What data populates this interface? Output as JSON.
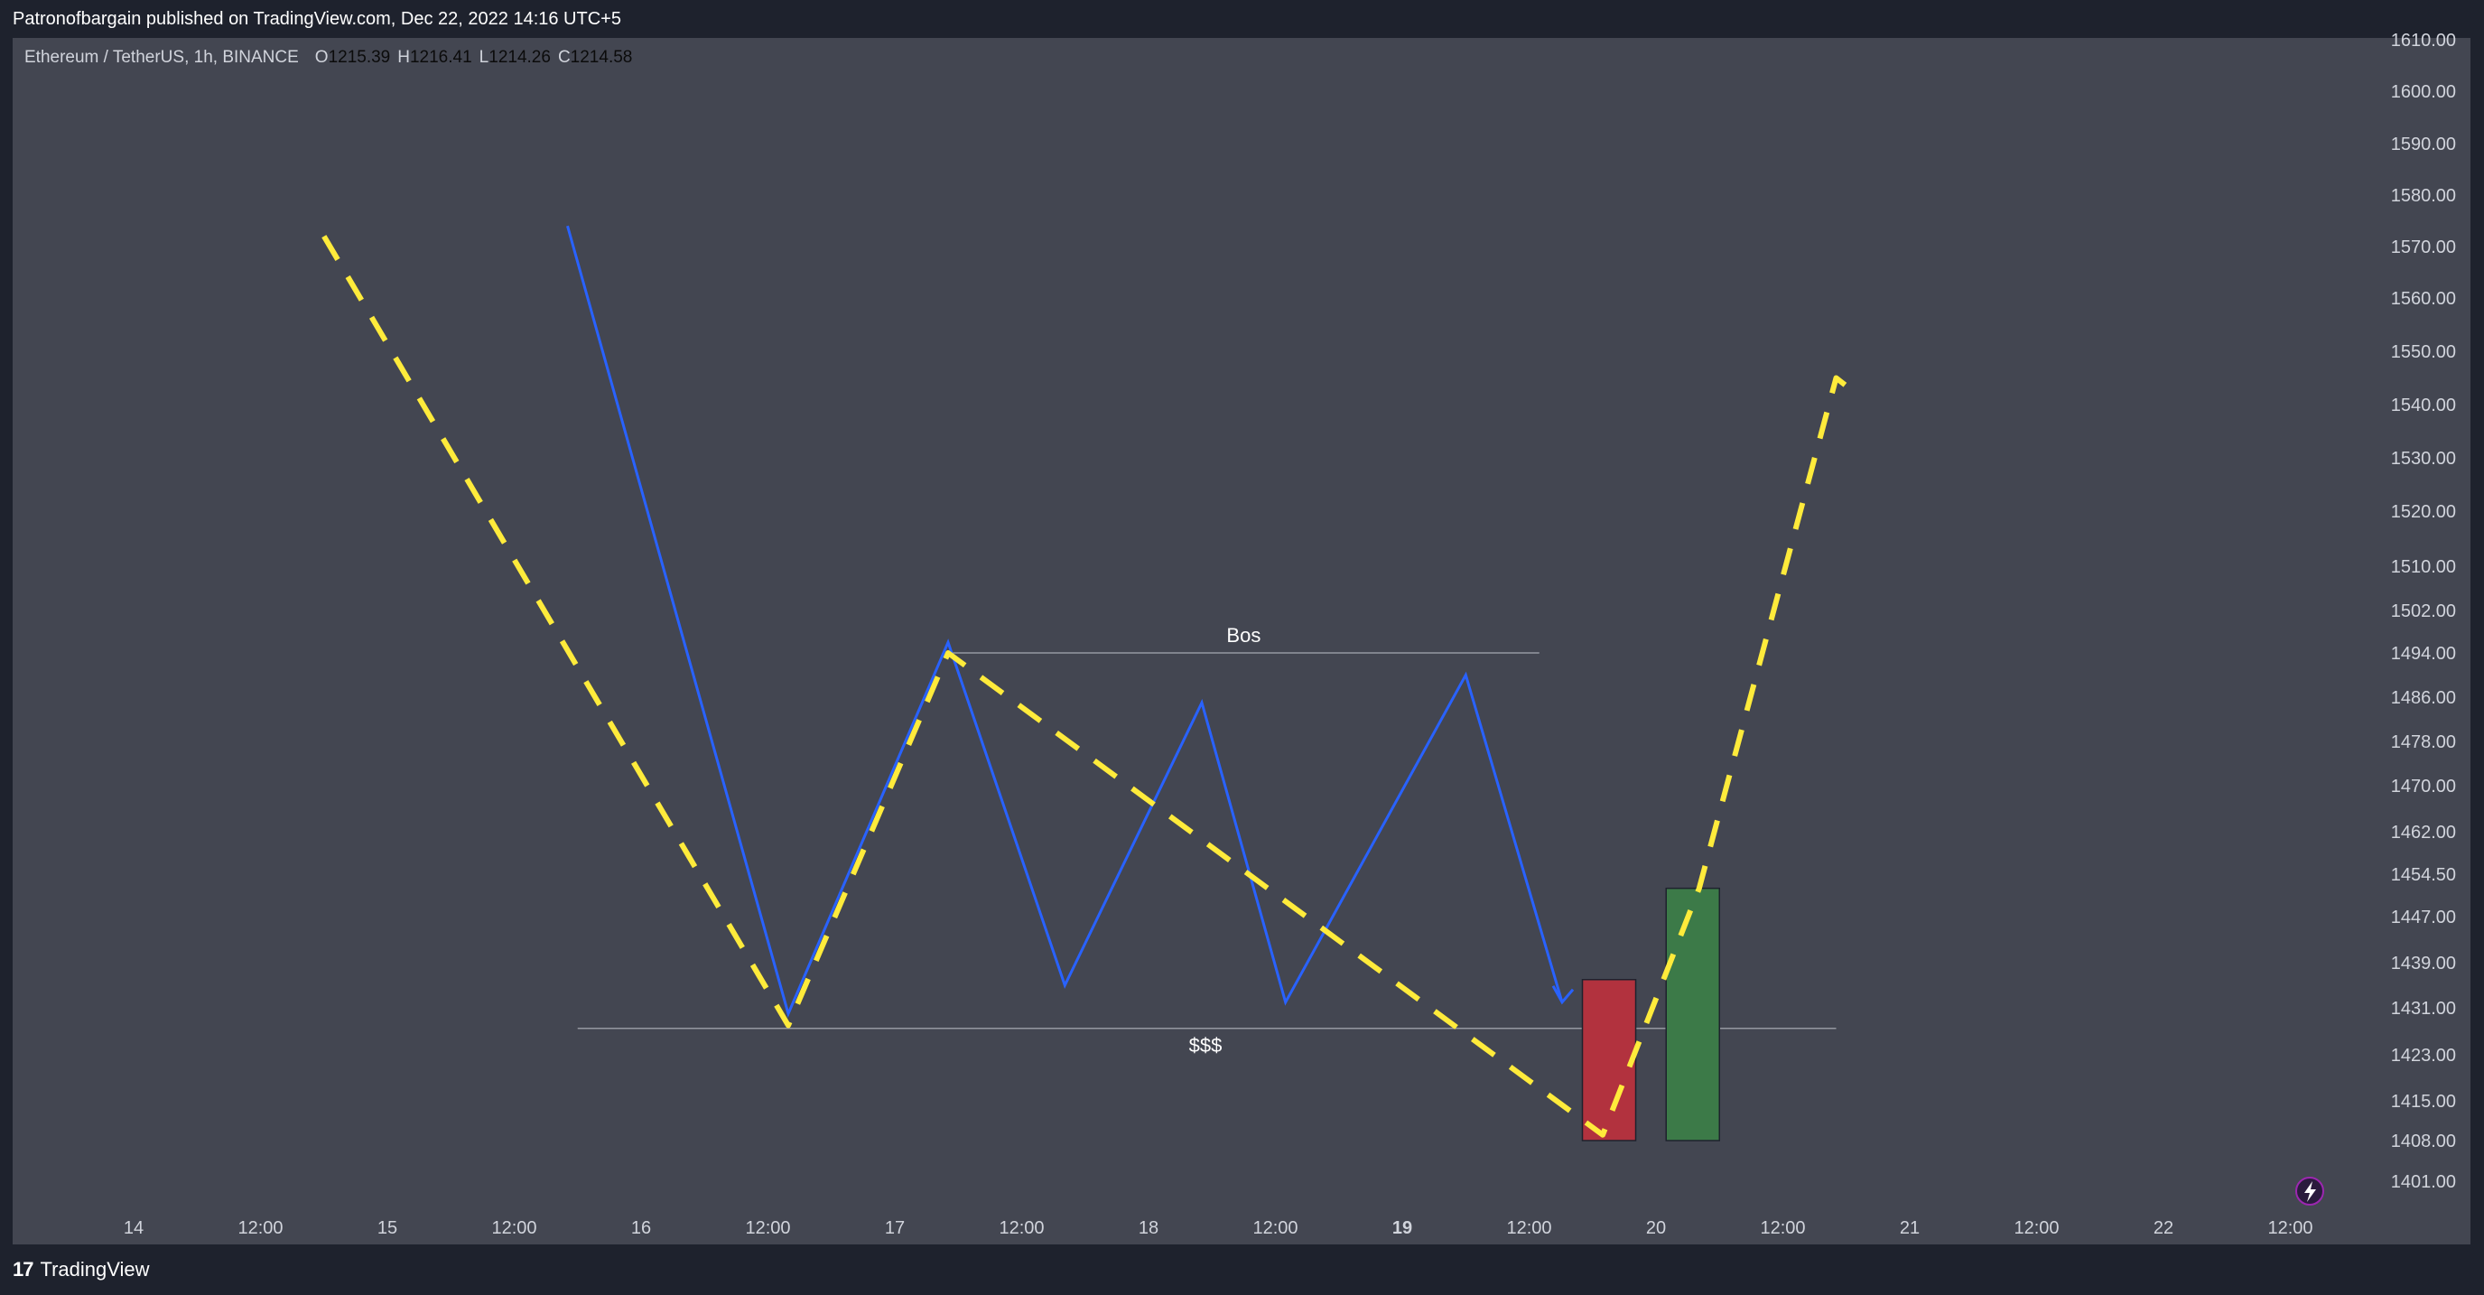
{
  "header": {
    "publish_note": "Patronofbargain published on TradingView.com, Dec 22, 2022 14:16 UTC+5"
  },
  "legend": {
    "symbol": "Ethereum / TetherUS, 1h, BINANCE",
    "open_key": "O",
    "open": "1215.39",
    "high_key": "H",
    "high": "1216.41",
    "low_key": "L",
    "low": "1214.26",
    "close_key": "C",
    "close": "1214.58"
  },
  "price_axis": {
    "labels": [
      {
        "text": "1610.00",
        "value": 1610
      },
      {
        "text": "1600.00",
        "value": 1600
      },
      {
        "text": "1590.00",
        "value": 1590
      },
      {
        "text": "1580.00",
        "value": 1580
      },
      {
        "text": "1570.00",
        "value": 1570
      },
      {
        "text": "1560.00",
        "value": 1560
      },
      {
        "text": "1550.00",
        "value": 1550
      },
      {
        "text": "1540.00",
        "value": 1540
      },
      {
        "text": "1530.00",
        "value": 1530
      },
      {
        "text": "1520.00",
        "value": 1520
      },
      {
        "text": "1510.00",
        "value": 1510
      },
      {
        "text": "1502.00",
        "value": 1502
      },
      {
        "text": "1494.00",
        "value": 1494
      },
      {
        "text": "1486.00",
        "value": 1486
      },
      {
        "text": "1478.00",
        "value": 1478
      },
      {
        "text": "1470.00",
        "value": 1470
      },
      {
        "text": "1462.00",
        "value": 1462
      },
      {
        "text": "1454.50",
        "value": 1454.5
      },
      {
        "text": "1447.00",
        "value": 1447
      },
      {
        "text": "1439.00",
        "value": 1439
      },
      {
        "text": "1431.00",
        "value": 1431
      },
      {
        "text": "1423.00",
        "value": 1423
      },
      {
        "text": "1415.00",
        "value": 1415
      },
      {
        "text": "1408.00",
        "value": 1408
      },
      {
        "text": "1401.00",
        "value": 1401
      }
    ]
  },
  "time_axis": {
    "labels": [
      {
        "text": "14",
        "bold": false
      },
      {
        "text": "12:00",
        "bold": false
      },
      {
        "text": "15",
        "bold": false
      },
      {
        "text": "12:00",
        "bold": false
      },
      {
        "text": "16",
        "bold": false
      },
      {
        "text": "12:00",
        "bold": false
      },
      {
        "text": "17",
        "bold": false
      },
      {
        "text": "12:00",
        "bold": false
      },
      {
        "text": "18",
        "bold": false
      },
      {
        "text": "12:00",
        "bold": false
      },
      {
        "text": "19",
        "bold": true
      },
      {
        "text": "12:00",
        "bold": false
      },
      {
        "text": "20",
        "bold": false
      },
      {
        "text": "12:00",
        "bold": false
      },
      {
        "text": "21",
        "bold": false
      },
      {
        "text": "12:00",
        "bold": false
      },
      {
        "text": "22",
        "bold": false
      },
      {
        "text": "12:00",
        "bold": false
      }
    ]
  },
  "annotations": {
    "bos_label": "Bos",
    "liquidity_label": "$$$",
    "colors": {
      "blue_path": "#2962ff",
      "yellow_projection": "#ffeb3b",
      "red_box": "#b2323e",
      "green_box": "#3c7a48",
      "level_line": "#9598a1"
    },
    "blue_path": [
      {
        "day": 15.71,
        "price": 1574
      },
      {
        "day": 16.58,
        "price": 1430
      },
      {
        "day": 17.21,
        "price": 1496
      },
      {
        "day": 17.67,
        "price": 1435
      },
      {
        "day": 18.21,
        "price": 1485
      },
      {
        "day": 18.54,
        "price": 1432
      },
      {
        "day": 19.25,
        "price": 1490
      },
      {
        "day": 19.63,
        "price": 1432
      }
    ],
    "yellow_path": [
      {
        "day": 14.75,
        "price": 1572
      },
      {
        "day": 16.58,
        "price": 1428
      },
      {
        "day": 17.21,
        "price": 1494
      },
      {
        "day": 19.79,
        "price": 1409
      },
      {
        "day": 20.17,
        "price": 1452
      },
      {
        "day": 20.71,
        "price": 1545
      },
      {
        "day": 20.79,
        "price": 1542
      }
    ],
    "bos_level": {
      "price": 1494,
      "day_start": 17.21,
      "day_end": 19.54
    },
    "liquidity_level": {
      "price": 1427.5,
      "day_start": 15.75,
      "day_end": 20.71
    },
    "red_box": {
      "day_start": 19.71,
      "day_end": 19.92,
      "price_top": 1436,
      "price_bottom": 1408
    },
    "green_box": {
      "day_start": 20.04,
      "day_end": 20.25,
      "price_top": 1452,
      "price_bottom": 1408
    }
  },
  "footer": {
    "brand": "TradingView",
    "brand_mark": "17"
  }
}
